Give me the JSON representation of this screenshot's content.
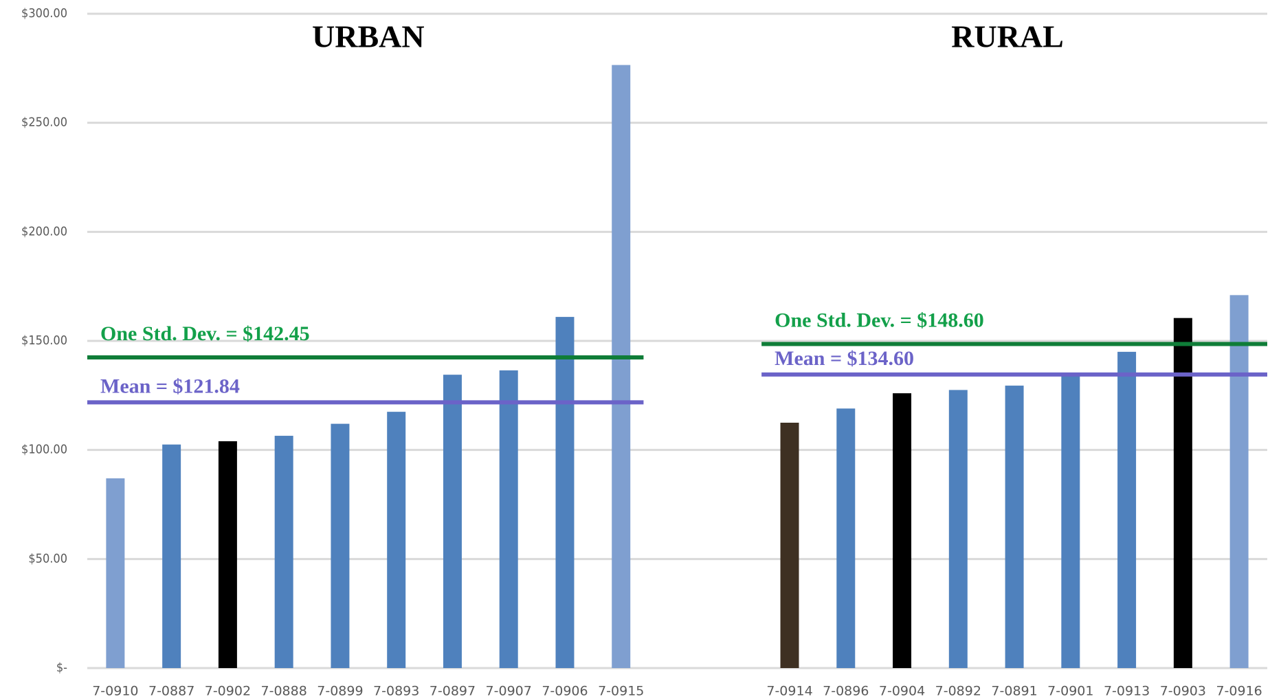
{
  "chart_data": {
    "type": "bar",
    "ylim": [
      0,
      300
    ],
    "yticks": [
      {
        "value": 0,
        "label": "$-"
      },
      {
        "value": 50,
        "label": "$50.00"
      },
      {
        "value": 100,
        "label": "$100.00"
      },
      {
        "value": 150,
        "label": "$150.00"
      },
      {
        "value": 200,
        "label": "$200.00"
      },
      {
        "value": 250,
        "label": "$250.00"
      },
      {
        "value": 300,
        "label": "$300.00"
      }
    ],
    "grid": true,
    "groups": [
      {
        "title": "URBAN",
        "categories": [
          "7-0910",
          "7-0887",
          "7-0902",
          "7-0888",
          "7-0899",
          "7-0893",
          "7-0897",
          "7-0907",
          "7-0906",
          "7-0915"
        ],
        "values": [
          87,
          102.5,
          104,
          106.5,
          112,
          117.5,
          134.5,
          136.5,
          161,
          276.5
        ],
        "colors": [
          "#7f9fd0",
          "#4f81bd",
          "#000000",
          "#4f81bd",
          "#4f81bd",
          "#4f81bd",
          "#4f81bd",
          "#4f81bd",
          "#4f81bd",
          "#7f9fd0"
        ],
        "mean": 121.84,
        "mean_label": "Mean = $121.84",
        "std": 142.45,
        "std_label": "One Std. Dev. = $142.45"
      },
      {
        "title": "RURAL",
        "categories": [
          "7-0914",
          "7-0896",
          "7-0904",
          "7-0892",
          "7-0891",
          "7-0901",
          "7-0913",
          "7-0903",
          "7-0916"
        ],
        "values": [
          112.5,
          119,
          126,
          127.5,
          129.5,
          134.5,
          145,
          160.5,
          171
        ],
        "colors": [
          "#3e3022",
          "#4f81bd",
          "#000000",
          "#4f81bd",
          "#4f81bd",
          "#4f81bd",
          "#4f81bd",
          "#000000",
          "#7f9fd0"
        ],
        "mean": 134.6,
        "mean_label": "Mean = $134.60",
        "std": 148.6,
        "std_label": "One Std. Dev. = $148.60"
      }
    ],
    "mean_color": "#6b63c8",
    "std_color": "#0f7d38",
    "std_text_color": "#13a04a"
  }
}
